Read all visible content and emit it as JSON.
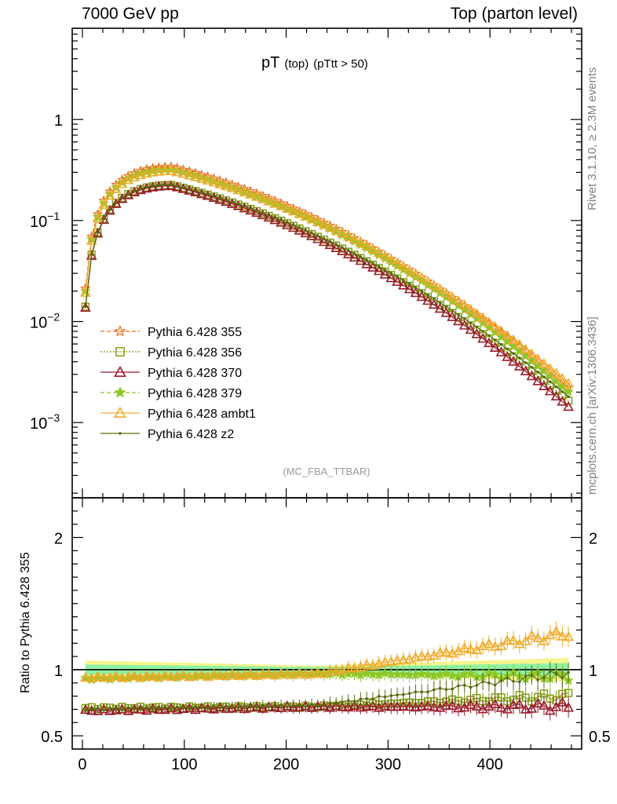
{
  "header": {
    "left": "7000 GeV pp",
    "right": "Top (parton level)"
  },
  "side_labels": {
    "rivet": "Rivet 3.1.10, ≥ 2.3M events",
    "source": "mcplots.cern.ch [arXiv:1306.3436]"
  },
  "analysis_tag": "(MC_FBA_TTBAR)",
  "chart_data": [
    {
      "type": "line",
      "title": {
        "main": "pT",
        "sub1": "(top)",
        "sub2": "(pTtt > 50)"
      },
      "xlabel": "",
      "ylabel": "",
      "xlim": [
        -10,
        490
      ],
      "ylim": [
        0.00018,
        8
      ],
      "yscale": "log",
      "yticks": [
        0.001,
        0.01,
        0.1,
        1
      ],
      "ytick_labels": [
        {
          "base": "10",
          "exp": "−3"
        },
        {
          "base": "10",
          "exp": "−2"
        },
        {
          "base": "10",
          "exp": "−1"
        },
        {
          "base": "1",
          "exp": ""
        }
      ],
      "legend_position": "bottom-left",
      "peak_x": 88,
      "series": [
        {
          "name": "Pythia 6.428 355",
          "color": "#f06a1a",
          "marker": "star-open",
          "dash": "5,3",
          "peak": 0.34,
          "tail": 0.0021
        },
        {
          "name": "Pythia 6.428 356",
          "color": "#7a9a0a",
          "marker": "square-open",
          "dash": "2,2",
          "peak": 0.225,
          "tail": 0.00155
        },
        {
          "name": "Pythia 6.428 370",
          "color": "#9a1a2a",
          "marker": "triangle-open",
          "dash": "",
          "peak": 0.22,
          "tail": 0.00135
        },
        {
          "name": "Pythia 6.428 379",
          "color": "#8cc82a",
          "marker": "star-filled",
          "dash": "5,3",
          "peak": 0.32,
          "tail": 0.0019
        },
        {
          "name": "Pythia 6.428 ambt1",
          "color": "#f0aa28",
          "marker": "triangle-open",
          "dash": "",
          "peak": 0.31,
          "tail": 0.0023
        },
        {
          "name": "Pythia 6.428 z2",
          "color": "#5a6a10",
          "marker": "dot",
          "dash": "",
          "peak": 0.225,
          "tail": 0.0017
        }
      ]
    },
    {
      "type": "line",
      "title": "",
      "xlabel": "",
      "ylabel": "Ratio to Pythia 6.428 355",
      "xlim": [
        -10,
        490
      ],
      "ylim": [
        0.4,
        2.3
      ],
      "yticks": [
        0.5,
        1,
        2
      ],
      "ytick_labels": [
        "0.5",
        "1",
        "2"
      ],
      "xticks": [
        0,
        100,
        200,
        300,
        400
      ],
      "xtick_labels": [
        "0",
        "100",
        "200",
        "300",
        "400"
      ],
      "reference": 1,
      "bands": [
        {
          "name": "MC uncertainty (yellow)",
          "color": "#f5f37a",
          "start": 0.07,
          "mid": 0.03,
          "end": 0.09
        },
        {
          "name": "stat uncertainty (green)",
          "color": "#7ef0a8",
          "start": 0.04,
          "mid": 0.02,
          "end": 0.05
        }
      ],
      "series": [
        {
          "name": "Pythia 6.428 356",
          "color": "#7a9a0a",
          "marker": "square-open",
          "start": 0.71,
          "mid": 0.72,
          "end": 0.8
        },
        {
          "name": "Pythia 6.428 370",
          "color": "#9a1a2a",
          "marker": "triangle-open",
          "start": 0.69,
          "mid": 0.72,
          "end": 0.72
        },
        {
          "name": "Pythia 6.428 379",
          "color": "#8cc82a",
          "marker": "star-filled",
          "start": 0.93,
          "mid": 0.97,
          "end": 0.95
        },
        {
          "name": "Pythia 6.428 ambt1",
          "color": "#f0aa28",
          "marker": "triangle-open",
          "start": 0.94,
          "mid": 0.97,
          "end": 1.28
        },
        {
          "name": "Pythia 6.428 z2",
          "color": "#5a6a10",
          "marker": "dot",
          "start": 0.7,
          "mid": 0.73,
          "end": 0.98
        }
      ]
    }
  ]
}
